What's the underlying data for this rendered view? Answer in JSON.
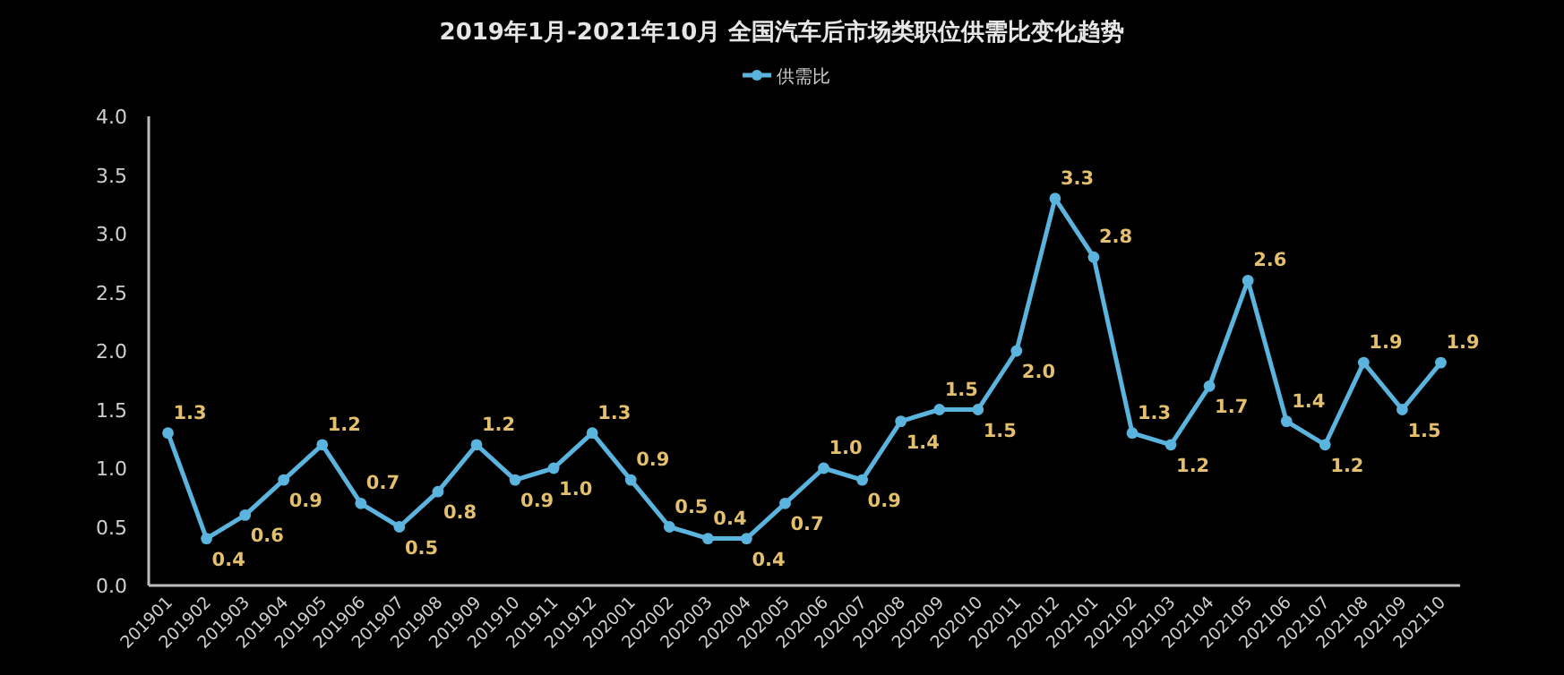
{
  "chart_data": {
    "type": "line",
    "title": "2019年1月-2021年10月  全国汽车后市场类职位供需比变化趋势",
    "categories": [
      "201901",
      "201902",
      "201903",
      "201904",
      "201905",
      "201906",
      "201907",
      "201908",
      "201909",
      "201910",
      "201911",
      "201912",
      "202001",
      "202002",
      "202003",
      "202004",
      "202005",
      "202006",
      "202007",
      "202008",
      "202009",
      "202010",
      "202011",
      "202012",
      "202101",
      "202102",
      "202103",
      "202104",
      "202105",
      "202106",
      "202107",
      "202108",
      "202109",
      "202110"
    ],
    "series": [
      {
        "name": "供需比",
        "color": "#5ab4de",
        "values": [
          1.3,
          0.4,
          0.6,
          0.9,
          1.2,
          0.7,
          0.5,
          0.8,
          1.2,
          0.9,
          1.0,
          1.3,
          0.9,
          0.5,
          0.4,
          0.4,
          0.7,
          1.0,
          0.9,
          1.4,
          1.5,
          1.5,
          2.0,
          3.3,
          2.8,
          1.3,
          1.2,
          1.7,
          2.6,
          1.4,
          1.2,
          1.9,
          1.5,
          1.9
        ],
        "value_labels": [
          "1.3",
          "0.4",
          "0.6",
          "0.9",
          "1.2",
          "0.7",
          "0.5",
          "0.8",
          "1.2",
          "0.9",
          "1.0",
          "1.3",
          "0.9",
          "0.5",
          "0.4",
          "0.4",
          "0.7",
          "1.0",
          "0.9",
          "1.4",
          "1.5",
          "1.5",
          "2.0",
          "3.3",
          "2.8",
          "1.3",
          "1.2",
          "1.7",
          "2.6",
          "1.4",
          "1.2",
          "1.9",
          "1.5",
          "1.9"
        ]
      }
    ],
    "ylim": [
      0,
      4
    ],
    "yticks": [
      {
        "value": 0,
        "label": "0.0"
      },
      {
        "value": 0.5,
        "label": "0.5"
      },
      {
        "value": 1,
        "label": "1.0"
      },
      {
        "value": 1.5,
        "label": "1.5"
      },
      {
        "value": 2,
        "label": "2.0"
      },
      {
        "value": 2.5,
        "label": "2.5"
      },
      {
        "value": 3,
        "label": "3.0"
      },
      {
        "value": 3.5,
        "label": "3.5"
      },
      {
        "value": 4,
        "label": "4.0"
      }
    ],
    "legend": "top",
    "marker": "circle",
    "line_style": "solid"
  }
}
